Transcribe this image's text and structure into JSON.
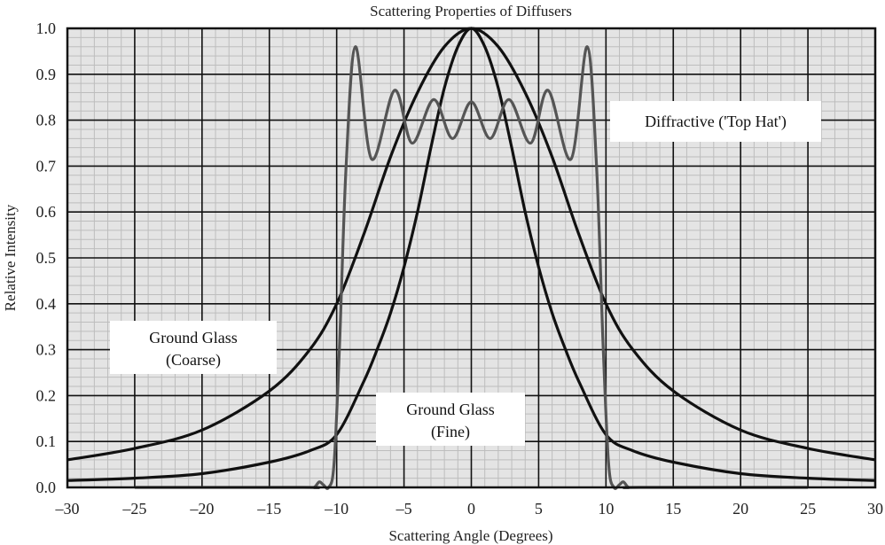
{
  "chart_data": {
    "type": "line",
    "title": "Scattering Properties of Diffusers",
    "xlabel": "Scattering Angle (Degrees)",
    "ylabel": "Relative Intensity",
    "xlim": [
      -30,
      30
    ],
    "ylim": [
      0,
      1.0
    ],
    "xticks": [
      -30,
      -25,
      -20,
      -15,
      -10,
      -5,
      0,
      5,
      10,
      15,
      20,
      25,
      30
    ],
    "yticks": [
      "0.0",
      "0.1",
      "0.2",
      "0.3",
      "0.4",
      "0.5",
      "0.6",
      "0.7",
      "0.8",
      "0.9",
      "1.0"
    ],
    "grid": true,
    "series": [
      {
        "name": "Ground Glass (Coarse)",
        "annotation": [
          "Ground Glass",
          "(Coarse)"
        ],
        "color": "#111111",
        "symmetric": true,
        "x": [
          0,
          2,
          4,
          6,
          8,
          10,
          12,
          15,
          20,
          25,
          30
        ],
        "y": [
          1.0,
          0.96,
          0.86,
          0.72,
          0.55,
          0.4,
          0.3,
          0.21,
          0.125,
          0.085,
          0.06
        ]
      },
      {
        "name": "Ground Glass (Fine)",
        "annotation": [
          "Ground Glass",
          "(Fine)"
        ],
        "color": "#111111",
        "symmetric": true,
        "x": [
          0,
          1,
          2,
          3,
          4,
          5,
          6,
          7,
          8,
          10,
          12,
          15,
          20,
          25,
          30
        ],
        "y": [
          1.0,
          0.96,
          0.87,
          0.74,
          0.6,
          0.48,
          0.38,
          0.3,
          0.23,
          0.115,
          0.08,
          0.055,
          0.03,
          0.02,
          0.015
        ]
      },
      {
        "name": "Diffractive ('Top Hat')",
        "annotation": [
          "Diffractive ('Top Hat')"
        ],
        "color": "#555555",
        "symmetric": true,
        "x": [
          0,
          1.4,
          2.8,
          4.4,
          5.7,
          7.4,
          8.6,
          9.3,
          9.8,
          10.2,
          10.6,
          11.0,
          11.3,
          11.7,
          12.5,
          25
        ],
        "y": [
          0.84,
          0.76,
          0.845,
          0.75,
          0.865,
          0.715,
          0.96,
          0.7,
          0.3,
          0.05,
          0.0,
          0.006,
          0.012,
          0.0,
          0.0,
          0.0
        ]
      }
    ]
  }
}
